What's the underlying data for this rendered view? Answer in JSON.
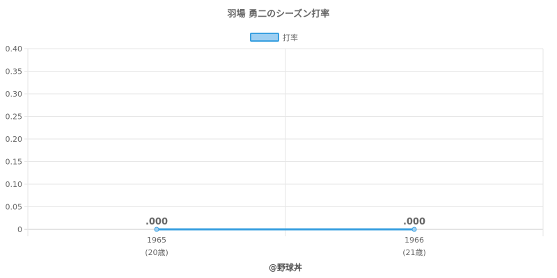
{
  "chart_data": {
    "type": "line",
    "title": "羽場 勇二のシーズン打率",
    "categories": [
      "1965",
      "1966"
    ],
    "category_sublabels": [
      "(20歳)",
      "(21歳)"
    ],
    "series": [
      {
        "name": "打率",
        "values": [
          0.0,
          0.0
        ],
        "data_labels": [
          ".000",
          ".000"
        ],
        "color": "#3aa0e0",
        "fill_color": "#9ecff2"
      }
    ],
    "ylim": [
      0,
      0.4
    ],
    "yticks": [
      "0.40",
      "0.35",
      "0.30",
      "0.25",
      "0.20",
      "0.15",
      "0.10",
      "0.05",
      "0"
    ],
    "ytick_values": [
      0.4,
      0.35,
      0.3,
      0.25,
      0.2,
      0.15,
      0.1,
      0.05,
      0
    ],
    "grid": true,
    "legend": "top-center",
    "credit": "@野球丼"
  }
}
